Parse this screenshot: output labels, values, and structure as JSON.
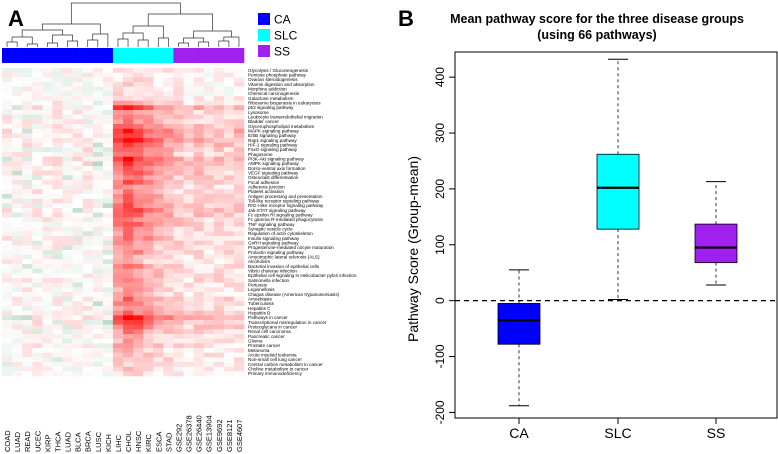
{
  "panels": {
    "a_label": "A",
    "b_label": "B"
  },
  "legend": [
    {
      "label": "CA",
      "color": "#0000ff"
    },
    {
      "label": "SLC",
      "color": "#00ffff"
    },
    {
      "label": "SS",
      "color": "#a020f0"
    }
  ],
  "colors": {
    "axis": "#000000",
    "heat_neg": "#2e8b57",
    "heat_pos": "#ff0000",
    "heat_zero": "#ffffff"
  },
  "chart_data": [
    {
      "type": "heatmap",
      "title": "",
      "columns": [
        "COAD",
        "LUAD",
        "READ",
        "UCEC",
        "KIRP",
        "THCA",
        "LUAD",
        "BLCA",
        "BRCA",
        "LUSC",
        "KICH",
        "LIHC",
        "CHOL",
        "HNSC",
        "KIRC",
        "ESCA",
        "STAD",
        "GSE292",
        "GSE26378",
        "GSE26440",
        "GSE13904",
        "GSE9692",
        "GSE8121",
        "GSE4607"
      ],
      "column_groups": [
        "CA",
        "CA",
        "CA",
        "CA",
        "CA",
        "CA",
        "CA",
        "CA",
        "CA",
        "CA",
        "CA",
        "SLC",
        "SLC",
        "SLC",
        "SLC",
        "SLC",
        "SLC",
        "SS",
        "SS",
        "SS",
        "SS",
        "SS",
        "SS",
        "SS"
      ],
      "rows": [
        "Glycolysis / Gluconeogenesis",
        "Pentose phosphate pathway",
        "Ovarian steroidogenesis",
        "Vitamin digestion and absorption",
        "Morphine addiction",
        "Chemical carcinogenesis",
        "Galactose metabolism",
        "Ribosome biogenesis in eukaryotes",
        "p53 signaling pathway",
        "Lysosome",
        "Leukocyte transendothelial migration",
        "Bladder cancer",
        "Glycerophospholipid metabolism",
        "MAPK signaling pathway",
        "ErbB signaling pathway",
        "Rap1 signaling pathway",
        "HIF-1 signaling pathway",
        "FoxO signaling pathway",
        "Phagosome",
        "PI3K-Akt signaling pathway",
        "AMPK signaling pathway",
        "Dorso-ventral axis formation",
        "VEGF signaling pathway",
        "Osteoclast differentiation",
        "Focal adhesion",
        "Adherens junction",
        "Platelet activation",
        "Antigen processing and presentation",
        "Toll-like receptor signaling pathway",
        "RIG-I-like receptor signaling pathway",
        "Jak-STAT signaling pathway",
        "Fc epsilon RI signaling pathway",
        "Fc gamma R-mediated phagocytosis",
        "TNF signaling pathway",
        "Synaptic vesicle cycle",
        "Regulation of actin cytoskeleton",
        "Insulin signaling pathway",
        "GnRH signaling pathway",
        "Progesterone-mediated oocyte maturation",
        "Prolactin signaling pathway",
        "Amyotrophic lateral sclerosis (ALS)",
        "Alcoholism",
        "Bacterial invasion of epithelial cells",
        "Vibrio cholerae infection",
        "Epithelial cell signaling in Helicobacter pylori infection",
        "Salmonella infection",
        "Pertussis",
        "Legionellosis",
        "Chagas disease (American trypanosomiasis)",
        "Amoebiasis",
        "Tuberculosis",
        "Hepatitis C",
        "Hepatitis B",
        "Pathways in cancer",
        "Transcriptional misregulation in cancer",
        "Proteoglycans in cancer",
        "Renal cell carcinoma",
        "Pancreatic cancer",
        "Glioma",
        "Prostate cancer",
        "Melanoma",
        "Acute myeloid leukemia",
        "Non-small cell lung cancer",
        "Central carbon metabolism in cancer",
        "Choline metabolism in cancer",
        "Primary immunodeficiency"
      ],
      "value_range": [
        -1,
        1
      ],
      "col_base": [
        0.02,
        0.0,
        0.02,
        0.04,
        0.02,
        0.03,
        0.0,
        0.02,
        0.03,
        -0.02,
        -0.04,
        0.3,
        0.42,
        0.35,
        0.28,
        0.2,
        0.16,
        0.11,
        0.07,
        0.1,
        0.08,
        0.09,
        0.07,
        0.09
      ],
      "row_base": [
        0.0,
        0.0,
        0.0,
        0.0,
        0.0,
        0.0,
        0.02,
        0.06,
        0.18,
        0.08,
        0.1,
        0.08,
        0.14,
        0.2,
        0.16,
        0.18,
        0.16,
        0.12,
        0.1,
        0.2,
        0.16,
        0.1,
        0.12,
        0.08,
        0.1,
        0.06,
        0.06,
        0.08,
        0.08,
        0.1,
        0.12,
        0.1,
        0.08,
        0.1,
        0.06,
        0.06,
        0.08,
        0.06,
        0.04,
        0.06,
        0.04,
        0.02,
        0.06,
        0.04,
        0.06,
        0.06,
        0.04,
        0.04,
        0.04,
        0.08,
        0.08,
        0.06,
        0.08,
        0.22,
        0.14,
        0.1,
        0.06,
        0.04,
        0.04,
        0.04,
        0.02,
        0.02,
        0.02,
        0.0,
        0.0,
        0.0
      ],
      "row_scale": [
        0.15,
        0.15,
        0.15,
        0.15,
        0.15,
        0.15,
        0.2,
        0.5,
        0.9,
        0.5,
        0.6,
        0.5,
        0.7,
        0.9,
        0.8,
        0.9,
        0.8,
        0.7,
        0.6,
        0.9,
        0.8,
        0.6,
        0.7,
        0.6,
        0.7,
        0.5,
        0.5,
        0.6,
        0.6,
        0.7,
        0.8,
        0.7,
        0.6,
        0.7,
        0.5,
        0.5,
        0.6,
        0.5,
        0.45,
        0.5,
        0.4,
        0.3,
        0.5,
        0.4,
        0.5,
        0.5,
        0.4,
        0.4,
        0.4,
        0.6,
        0.6,
        0.5,
        0.6,
        1.0,
        0.8,
        0.7,
        0.5,
        0.4,
        0.4,
        0.4,
        0.3,
        0.3,
        0.3,
        0.2,
        0.2,
        0.2
      ]
    },
    {
      "type": "boxplot",
      "title": "Mean pathway score for the three disease groups",
      "subtitle": "(using 66 pathways)",
      "xlabel": "",
      "ylabel": "Pathway Score (Group-mean)",
      "categories": [
        "CA",
        "SLC",
        "SS"
      ],
      "colors": [
        "#0000ff",
        "#00ffff",
        "#a020f0"
      ],
      "ylim": [
        -210,
        445
      ],
      "yticks": [
        -200,
        -100,
        0,
        100,
        200,
        300,
        400
      ],
      "reference_line": 0,
      "boxes": [
        {
          "min": -188,
          "q1": -78,
          "median": -35,
          "q3": -5,
          "max": 55
        },
        {
          "min": 2,
          "q1": 128,
          "median": 202,
          "q3": 262,
          "max": 432
        },
        {
          "min": 28,
          "q1": 68,
          "median": 95,
          "q3": 137,
          "max": 213
        }
      ]
    }
  ]
}
